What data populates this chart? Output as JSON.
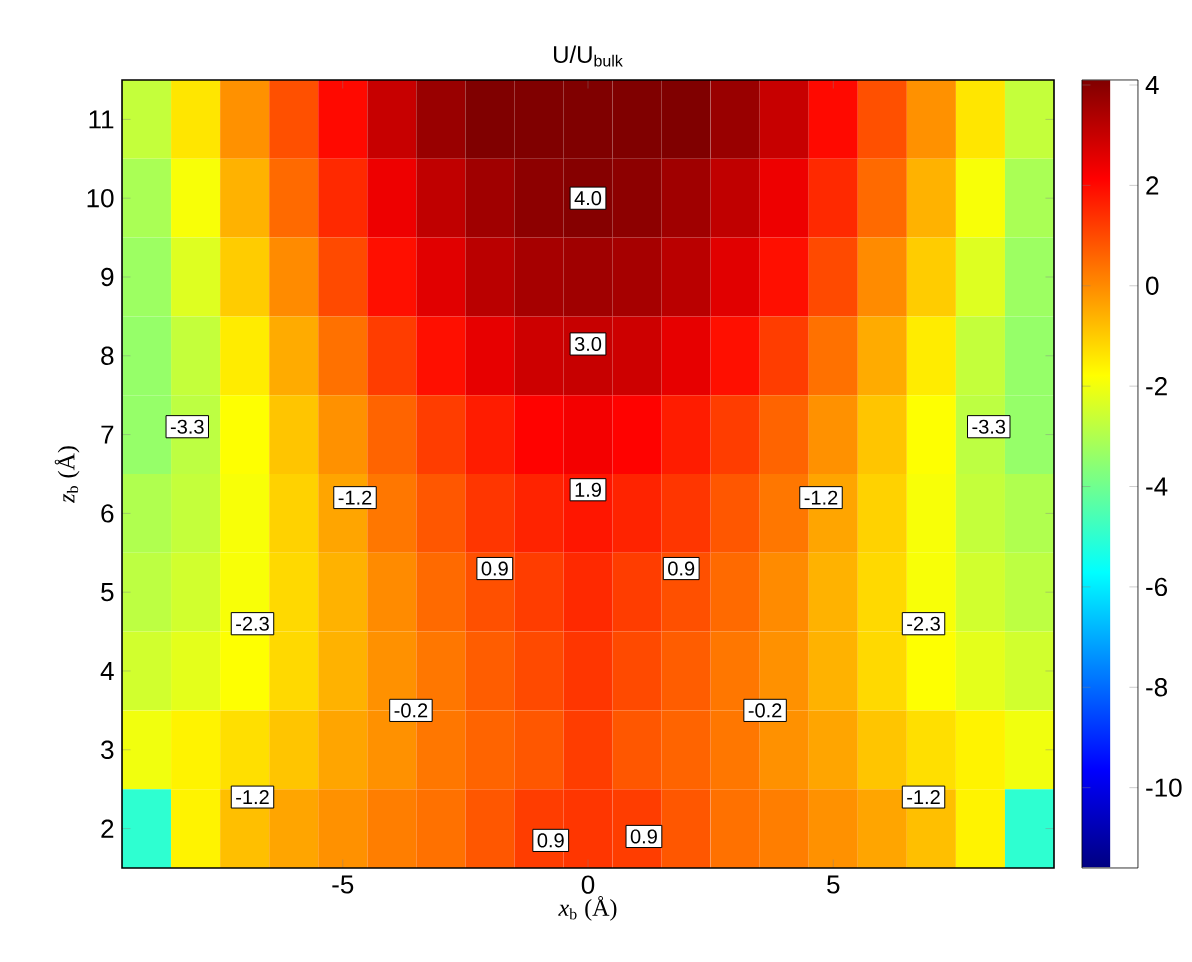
{
  "chart_data": {
    "type": "heatmap",
    "title": "U/U$_{bulk}$",
    "xlabel": "*x*$_{b}$ (Å)",
    "ylabel": "*z*$_{b}$ (Å)",
    "categories": [
      null,
      null,
      null,
      null,
      "-5",
      null,
      null,
      null,
      null,
      "0",
      null,
      null,
      null,
      null,
      "5",
      null,
      null,
      null,
      null
    ],
    "y_categories": [
      "11",
      "10",
      "9",
      "8",
      "7",
      "6",
      "5",
      "4",
      "3",
      "2"
    ],
    "cells": [
      [
        -2.7,
        -1.4,
        -0.1,
        0.9,
        2.0,
        3.0,
        3.7,
        4.1,
        4.3,
        4.4,
        4.3,
        4.1,
        3.7,
        3.0,
        2.0,
        0.9,
        -0.1,
        -1.4,
        -2.7
      ],
      [
        -3.1,
        -1.9,
        -0.6,
        0.5,
        1.5,
        2.4,
        3.1,
        3.6,
        3.9,
        4.0,
        3.9,
        3.6,
        3.1,
        2.4,
        1.5,
        0.5,
        -0.6,
        -1.9,
        -3.1
      ],
      [
        -3.3,
        -2.3,
        -1.0,
        0.0,
        1.0,
        1.9,
        2.6,
        3.2,
        3.5,
        3.6,
        3.5,
        3.2,
        2.6,
        1.9,
        1.0,
        0.0,
        -1.0,
        -2.3,
        -3.3
      ],
      [
        -3.4,
        -2.7,
        -1.5,
        -0.5,
        0.4,
        1.2,
        1.9,
        2.5,
        2.9,
        3.0,
        2.9,
        2.5,
        1.9,
        1.2,
        0.4,
        -0.5,
        -1.5,
        -2.7,
        -3.4
      ],
      [
        -3.4,
        -2.8,
        -1.8,
        -0.9,
        -0.1,
        0.6,
        1.2,
        1.7,
        2.1,
        2.3,
        2.1,
        1.7,
        1.2,
        0.6,
        -0.1,
        -0.9,
        -1.8,
        -2.8,
        -3.4
      ],
      [
        -3.0,
        -2.7,
        -1.9,
        -1.1,
        -0.4,
        0.3,
        0.8,
        1.3,
        1.6,
        1.8,
        1.6,
        1.3,
        0.8,
        0.3,
        -0.4,
        -1.1,
        -1.9,
        -2.7,
        -3.0
      ],
      [
        -2.8,
        -2.5,
        -1.9,
        -1.2,
        -0.6,
        0.0,
        0.5,
        0.9,
        1.2,
        1.5,
        1.2,
        0.9,
        0.5,
        0.0,
        -0.6,
        -1.2,
        -1.9,
        -2.5,
        -2.8
      ],
      [
        -2.5,
        -2.2,
        -1.8,
        -1.2,
        -0.6,
        -0.1,
        0.3,
        0.7,
        1.0,
        1.3,
        1.0,
        0.7,
        0.3,
        -0.1,
        -0.6,
        -1.2,
        -1.8,
        -2.2,
        -2.5
      ],
      [
        -2.0,
        -1.6,
        -1.3,
        -0.9,
        -0.4,
        -0.1,
        0.3,
        0.6,
        0.8,
        1.2,
        0.8,
        0.6,
        0.3,
        -0.1,
        -0.4,
        -0.9,
        -1.3,
        -1.6,
        -2.0
      ],
      [
        -5.0,
        -1.6,
        -0.8,
        -0.4,
        -0.1,
        0.2,
        0.4,
        0.8,
        1.2,
        1.3,
        1.2,
        0.8,
        0.4,
        0.2,
        -0.1,
        -0.4,
        -0.8,
        -1.6,
        -5.0
      ]
    ],
    "clim": [
      -11.6,
      4.1
    ],
    "cticks": [
      -10,
      -8,
      -6,
      -4,
      -2,
      0,
      2,
      4
    ],
    "annotations": [
      "4.0",
      "3.0",
      "1.9",
      "-3.3",
      "-3.3",
      "-1.2",
      "-1.2",
      "-2.3",
      "-2.3",
      "0.9",
      "0.9",
      "-0.2",
      "-0.2",
      "-1.2",
      "-1.2",
      "0.9",
      "0.9"
    ]
  }
}
